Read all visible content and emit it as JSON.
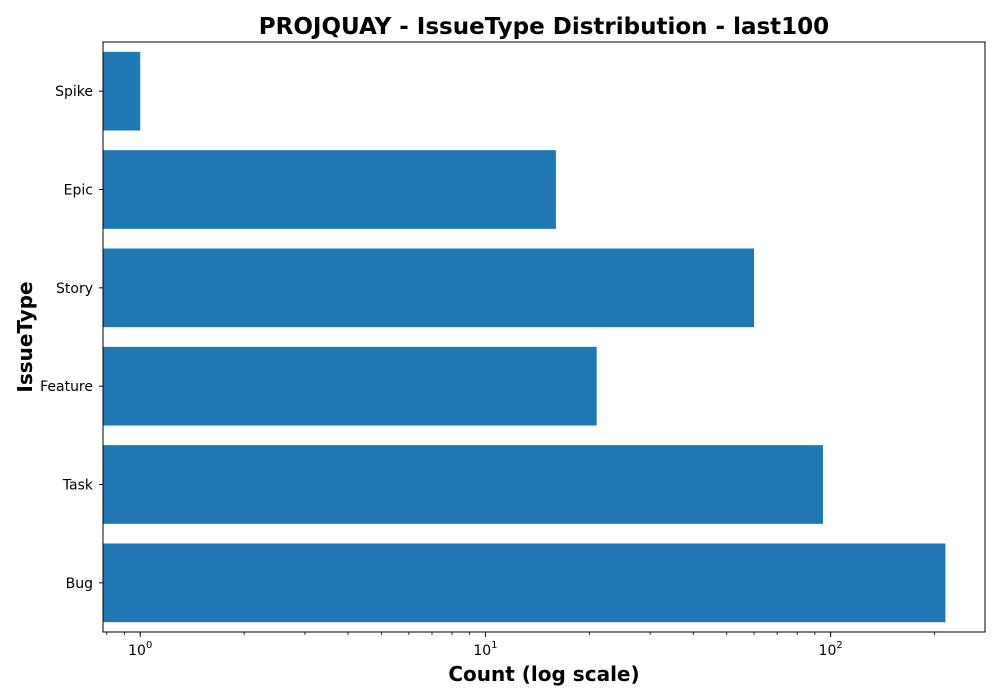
{
  "chart_data": {
    "type": "bar",
    "orientation": "horizontal",
    "title": "PROJQUAY - IssueType Distribution - last100",
    "xlabel": "Count (log scale)",
    "ylabel": "IssueType",
    "x_scale": "log",
    "xlim": [
      0.78,
      280
    ],
    "x_ticks": [
      {
        "base": "10",
        "exp": "0",
        "value": 1
      },
      {
        "base": "10",
        "exp": "1",
        "value": 10
      },
      {
        "base": "10",
        "exp": "2",
        "value": 100
      }
    ],
    "categories": [
      "Spike",
      "Epic",
      "Story",
      "Feature",
      "Task",
      "Bug"
    ],
    "values": [
      1,
      16,
      60,
      21,
      95,
      215
    ],
    "bar_color": "#1f77b4",
    "grid": false,
    "legend": false
  }
}
